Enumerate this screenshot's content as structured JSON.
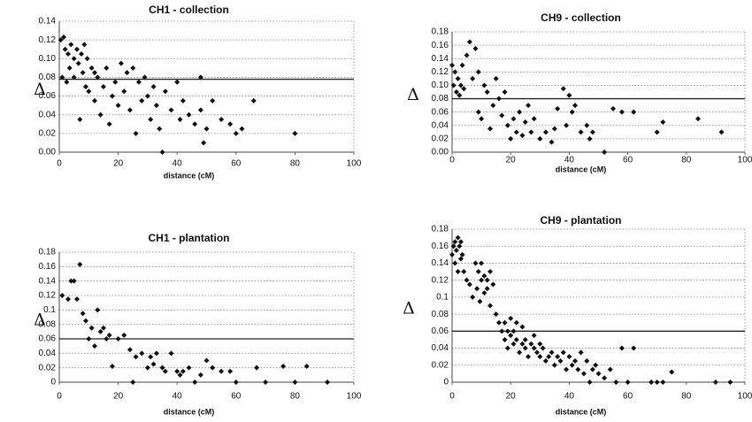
{
  "chart_data": [
    {
      "type": "scatter",
      "title": "CH1 - collection",
      "xlabel": "distance (cM)",
      "ylabel": "Δ",
      "color": "#111111",
      "grid": true,
      "threshold": 0.078,
      "xlim": [
        0,
        100
      ],
      "xticks": [
        0,
        20,
        40,
        60,
        80,
        100
      ],
      "ylim": [
        0,
        0.14
      ],
      "yticks": [
        {
          "value": 0,
          "label": "0.00"
        },
        {
          "value": 0.02,
          "label": "0.02"
        },
        {
          "value": 0.04,
          "label": "0.04"
        },
        {
          "value": 0.06,
          "label": "0.06"
        },
        {
          "value": 0.08,
          "label": "0.08"
        },
        {
          "value": 0.1,
          "label": "0.10"
        },
        {
          "value": 0.12,
          "label": "0.12"
        },
        {
          "value": 0.14,
          "label": "0.14"
        }
      ],
      "x": [
        0.5,
        1,
        1.5,
        2,
        2.5,
        3,
        3.5,
        4,
        5,
        5,
        6,
        6.5,
        7,
        7.5,
        8,
        8.5,
        9,
        9.5,
        10,
        11,
        12,
        12,
        13,
        14,
        15,
        16,
        17,
        18,
        19,
        20,
        21,
        22,
        23,
        24,
        25,
        26,
        27,
        28,
        29,
        30,
        31,
        32,
        33,
        34,
        35,
        36,
        38,
        40,
        41,
        42,
        44,
        46,
        48,
        48,
        49,
        50,
        52,
        55,
        58,
        60,
        62,
        66,
        80
      ],
      "values": [
        0.12,
        0.08,
        0.123,
        0.11,
        0.075,
        0.105,
        0.09,
        0.115,
        0.1,
        0.08,
        0.11,
        0.095,
        0.035,
        0.105,
        0.085,
        0.115,
        0.07,
        0.1,
        0.065,
        0.09,
        0.055,
        0.085,
        0.08,
        0.04,
        0.07,
        0.09,
        0.03,
        0.06,
        0.075,
        0.05,
        0.095,
        0.065,
        0.085,
        0.045,
        0.09,
        0.02,
        0.075,
        0.055,
        0.08,
        0.06,
        0.035,
        0.07,
        0.05,
        0.025,
        0.0,
        0.065,
        0.045,
        0.075,
        0.035,
        0.055,
        0.04,
        0.03,
        0.045,
        0.08,
        0.01,
        0.025,
        0.055,
        0.035,
        0.03,
        0.02,
        0.025,
        0.055,
        0.02
      ]
    },
    {
      "type": "scatter",
      "title": "CH9 - collection",
      "xlabel": "distance (cM)",
      "ylabel": "Δ",
      "color": "#111111",
      "grid": true,
      "threshold": 0.08,
      "xlim": [
        0,
        100
      ],
      "xticks": [
        0,
        20,
        40,
        60,
        80,
        100
      ],
      "ylim": [
        0,
        0.18
      ],
      "yticks": [
        {
          "value": 0,
          "label": "0.00"
        },
        {
          "value": 0.02,
          "label": "0.02"
        },
        {
          "value": 0.04,
          "label": "0.04"
        },
        {
          "value": 0.06,
          "label": "0.06"
        },
        {
          "value": 0.08,
          "label": "0.08"
        },
        {
          "value": 0.1,
          "label": "0.10"
        },
        {
          "value": 0.12,
          "label": "0.12"
        },
        {
          "value": 0.14,
          "label": "0.14"
        },
        {
          "value": 0.16,
          "label": "0.16"
        },
        {
          "value": 0.18,
          "label": "0.18"
        }
      ],
      "x": [
        0,
        0.5,
        1,
        1.5,
        2,
        2.5,
        3,
        3.5,
        4,
        5,
        6,
        7,
        8,
        9,
        9,
        10,
        11,
        12,
        13,
        14,
        15,
        16,
        17,
        18,
        19,
        20,
        21,
        22,
        23,
        24,
        25,
        26,
        27,
        28,
        30,
        32,
        34,
        35,
        36,
        38,
        39,
        40,
        41,
        42,
        44,
        46,
        47,
        48,
        52,
        55,
        58,
        62,
        70,
        72,
        84,
        92
      ],
      "values": [
        0.13,
        0.1,
        0.12,
        0.09,
        0.11,
        0.085,
        0.1,
        0.13,
        0.095,
        0.145,
        0.165,
        0.11,
        0.155,
        0.06,
        0.12,
        0.05,
        0.1,
        0.09,
        0.035,
        0.07,
        0.11,
        0.08,
        0.055,
        0.09,
        0.04,
        0.02,
        0.05,
        0.03,
        0.06,
        0.025,
        0.045,
        0.07,
        0.03,
        0.05,
        0.02,
        0.03,
        0.015,
        0.035,
        0.065,
        0.095,
        0.04,
        0.085,
        0.06,
        0.07,
        0.03,
        0.04,
        0.02,
        0.03,
        0.0,
        0.065,
        0.06,
        0.06,
        0.03,
        0.045,
        0.05,
        0.03
      ]
    },
    {
      "type": "scatter",
      "title": "CH1 - plantation",
      "xlabel": "distance (cM)",
      "ylabel": "Δ",
      "color": "#111111",
      "grid": true,
      "threshold": 0.06,
      "xlim": [
        0,
        100
      ],
      "xticks": [
        0,
        20,
        40,
        60,
        80,
        100
      ],
      "ylim": [
        0,
        0.18
      ],
      "yticks": [
        0,
        0.02,
        0.04,
        0.06,
        0.08,
        0.1,
        0.12,
        0.14,
        0.16,
        0.18
      ],
      "x": [
        1,
        3,
        4,
        5,
        6,
        7,
        8,
        9,
        10,
        11,
        12,
        13,
        14,
        15,
        16,
        17,
        18,
        20,
        22,
        24,
        25,
        26,
        28,
        30,
        31,
        32,
        33,
        35,
        36,
        38,
        40,
        41,
        42,
        44,
        46,
        48,
        50,
        52,
        55,
        58,
        60,
        67,
        70,
        76,
        80,
        84,
        91
      ],
      "values": [
        0.12,
        0.115,
        0.14,
        0.14,
        0.115,
        0.163,
        0.095,
        0.085,
        0.06,
        0.075,
        0.05,
        0.1,
        0.07,
        0.075,
        0.06,
        0.065,
        0.022,
        0.06,
        0.065,
        0.045,
        0.0,
        0.035,
        0.04,
        0.02,
        0.035,
        0.025,
        0.04,
        0.02,
        0.015,
        0.04,
        0.015,
        0.01,
        0.015,
        0.02,
        0.0,
        0.01,
        0.03,
        0.02,
        0.015,
        0.015,
        0.0,
        0.02,
        0.0,
        0.022,
        0.0,
        0.022,
        0.0
      ]
    },
    {
      "type": "scatter",
      "title": "CH9 - plantation",
      "xlabel": "distance (cM)",
      "ylabel": "Δ",
      "color": "#111111",
      "grid": true,
      "threshold": 0.06,
      "xlim": [
        0,
        100
      ],
      "xticks": [
        0,
        20,
        40,
        60,
        80,
        100
      ],
      "ylim": [
        0,
        0.18
      ],
      "yticks": [
        0,
        0.02,
        0.04,
        0.06,
        0.08,
        0.1,
        0.12,
        0.14,
        0.16,
        0.18
      ],
      "x": [
        0,
        0.5,
        1,
        1,
        1.5,
        2,
        2,
        2.5,
        3,
        3,
        3.5,
        4,
        5,
        6,
        7,
        8,
        8.5,
        9,
        9.5,
        10,
        10,
        11,
        11,
        12,
        12,
        13,
        13,
        14,
        15,
        16,
        17,
        18,
        18,
        19,
        19,
        20,
        20,
        21,
        21,
        22,
        22,
        23,
        24,
        24,
        25,
        25,
        26,
        27,
        28,
        28,
        29,
        30,
        30,
        31,
        32,
        33,
        34,
        35,
        36,
        37,
        38,
        39,
        40,
        41,
        42,
        43,
        44,
        45,
        46,
        47,
        48,
        49,
        50,
        52,
        54,
        56,
        58,
        60,
        62,
        68,
        70,
        72,
        75,
        90,
        95
      ],
      "values": [
        0.15,
        0.16,
        0.14,
        0.165,
        0.155,
        0.17,
        0.13,
        0.16,
        0.145,
        0.165,
        0.15,
        0.13,
        0.12,
        0.115,
        0.1,
        0.14,
        0.11,
        0.13,
        0.095,
        0.12,
        0.14,
        0.105,
        0.125,
        0.11,
        0.12,
        0.09,
        0.13,
        0.115,
        0.08,
        0.07,
        0.06,
        0.05,
        0.07,
        0.04,
        0.06,
        0.055,
        0.075,
        0.045,
        0.06,
        0.05,
        0.07,
        0.035,
        0.045,
        0.065,
        0.04,
        0.05,
        0.03,
        0.045,
        0.04,
        0.055,
        0.035,
        0.03,
        0.045,
        0.04,
        0.025,
        0.03,
        0.035,
        0.02,
        0.03,
        0.025,
        0.035,
        0.015,
        0.03,
        0.02,
        0.025,
        0.015,
        0.035,
        0.01,
        0.025,
        0.0,
        0.015,
        0.02,
        0.01,
        0.005,
        0.015,
        0.0,
        0.04,
        0.0,
        0.04,
        0.0,
        0.0,
        0.0,
        0.012,
        0.0,
        0.0
      ]
    }
  ]
}
